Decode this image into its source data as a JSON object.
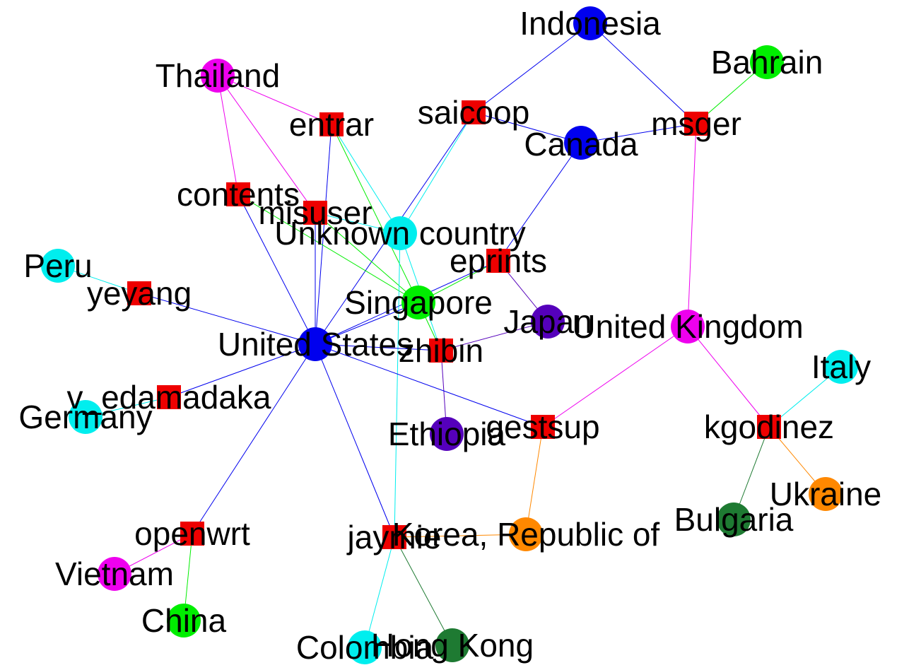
{
  "graph": {
    "countries": [
      {
        "id": "indonesia",
        "label": "Indonesia",
        "color": "#0000ee"
      },
      {
        "id": "bahrain",
        "label": "Bahrain",
        "color": "#00ee00"
      },
      {
        "id": "thailand",
        "label": "Thailand",
        "color": "#ee00ee"
      },
      {
        "id": "canada",
        "label": "Canada",
        "color": "#0000ee"
      },
      {
        "id": "unknown",
        "label": "Unknown country",
        "color": "#00eeee"
      },
      {
        "id": "peru",
        "label": "Peru",
        "color": "#00eeee"
      },
      {
        "id": "singapore",
        "label": "Singapore",
        "color": "#00ee00"
      },
      {
        "id": "japan",
        "label": "Japan",
        "color": "#5500bb"
      },
      {
        "id": "uk",
        "label": "United Kingdom",
        "color": "#ee00ee"
      },
      {
        "id": "us",
        "label": "United States",
        "color": "#0000ee"
      },
      {
        "id": "italy",
        "label": "Italy",
        "color": "#00eeee"
      },
      {
        "id": "germany",
        "label": "Germany",
        "color": "#00eeee"
      },
      {
        "id": "ethiopia",
        "label": "Ethiopia",
        "color": "#5500bb"
      },
      {
        "id": "ukraine",
        "label": "Ukraine",
        "color": "#ff8800"
      },
      {
        "id": "bulgaria",
        "label": "Bulgaria",
        "color": "#1e7a32"
      },
      {
        "id": "korea",
        "label": "Korea, Republic of",
        "color": "#ff8800"
      },
      {
        "id": "vietnam",
        "label": "Vietnam",
        "color": "#ee00ee"
      },
      {
        "id": "china",
        "label": "China",
        "color": "#00ee00"
      },
      {
        "id": "colombia",
        "label": "Colombia",
        "color": "#00eeee"
      },
      {
        "id": "hongkong",
        "label": "Hong Kong",
        "color": "#1e7a32"
      }
    ],
    "users": [
      {
        "id": "saicoop",
        "label": "saicoop"
      },
      {
        "id": "msger",
        "label": "msger"
      },
      {
        "id": "entrar",
        "label": "entrar"
      },
      {
        "id": "contents",
        "label": "contents"
      },
      {
        "id": "misuser",
        "label": "misuser"
      },
      {
        "id": "eprints",
        "label": "eprints"
      },
      {
        "id": "yeyang",
        "label": "yeyang"
      },
      {
        "id": "zhibin",
        "label": "zhibin"
      },
      {
        "id": "vedamadaka",
        "label": "v_edamadaka"
      },
      {
        "id": "gestsup",
        "label": "gestsup"
      },
      {
        "id": "kgodinez",
        "label": "kgodinez"
      },
      {
        "id": "openwrt",
        "label": "openwrt"
      },
      {
        "id": "jaymie",
        "label": "jaymie"
      }
    ],
    "user_color": "#ee0000",
    "edges": [
      {
        "a": "indonesia",
        "b": "saicoop",
        "color": "#0000ee"
      },
      {
        "a": "indonesia",
        "b": "msger",
        "color": "#0000ee"
      },
      {
        "a": "bahrain",
        "b": "msger",
        "color": "#00ee00"
      },
      {
        "a": "saicoop",
        "b": "canada",
        "color": "#0000ee"
      },
      {
        "a": "saicoop",
        "b": "unknown",
        "color": "#00eeee"
      },
      {
        "a": "saicoop",
        "b": "us",
        "color": "#0000ee"
      },
      {
        "a": "canada",
        "b": "msger",
        "color": "#0000ee"
      },
      {
        "a": "msger",
        "b": "uk",
        "color": "#ee00ee"
      },
      {
        "a": "thailand",
        "b": "entrar",
        "color": "#ee00ee"
      },
      {
        "a": "thailand",
        "b": "contents",
        "color": "#ee00ee"
      },
      {
        "a": "thailand",
        "b": "misuser",
        "color": "#ee00ee"
      },
      {
        "a": "entrar",
        "b": "us",
        "color": "#0000ee"
      },
      {
        "a": "entrar",
        "b": "unknown",
        "color": "#00eeee"
      },
      {
        "a": "entrar",
        "b": "singapore",
        "color": "#00ee00"
      },
      {
        "a": "contents",
        "b": "us",
        "color": "#0000ee"
      },
      {
        "a": "contents",
        "b": "singapore",
        "color": "#00ee00"
      },
      {
        "a": "misuser",
        "b": "us",
        "color": "#0000ee"
      },
      {
        "a": "misuser",
        "b": "unknown",
        "color": "#00eeee"
      },
      {
        "a": "misuser",
        "b": "singapore",
        "color": "#00ee00"
      },
      {
        "a": "canada",
        "b": "eprints",
        "color": "#0000ee"
      },
      {
        "a": "eprints",
        "b": "singapore",
        "color": "#00ee00"
      },
      {
        "a": "eprints",
        "b": "japan",
        "color": "#5500bb"
      },
      {
        "a": "eprints",
        "b": "us",
        "color": "#0000ee"
      },
      {
        "a": "peru",
        "b": "yeyang",
        "color": "#00eeee"
      },
      {
        "a": "yeyang",
        "b": "us",
        "color": "#0000ee"
      },
      {
        "a": "unknown",
        "b": "zhibin",
        "color": "#00eeee"
      },
      {
        "a": "unknown",
        "b": "jaymie",
        "color": "#00eeee"
      },
      {
        "a": "singapore",
        "b": "zhibin",
        "color": "#00ee00"
      },
      {
        "a": "singapore",
        "b": "us",
        "color": "#0000ee"
      },
      {
        "a": "us",
        "b": "zhibin",
        "color": "#0000ee"
      },
      {
        "a": "japan",
        "b": "zhibin",
        "color": "#5500bb"
      },
      {
        "a": "zhibin",
        "b": "ethiopia",
        "color": "#5500bb"
      },
      {
        "a": "us",
        "b": "vedamadaka",
        "color": "#0000ee"
      },
      {
        "a": "germany",
        "b": "vedamadaka",
        "color": "#00eeee"
      },
      {
        "a": "us",
        "b": "gestsup",
        "color": "#0000ee"
      },
      {
        "a": "uk",
        "b": "gestsup",
        "color": "#ee00ee"
      },
      {
        "a": "gestsup",
        "b": "korea",
        "color": "#ff8800"
      },
      {
        "a": "uk",
        "b": "kgodinez",
        "color": "#ee00ee"
      },
      {
        "a": "italy",
        "b": "kgodinez",
        "color": "#00eeee"
      },
      {
        "a": "kgodinez",
        "b": "ukraine",
        "color": "#ff8800"
      },
      {
        "a": "kgodinez",
        "b": "bulgaria",
        "color": "#1e7a32"
      },
      {
        "a": "us",
        "b": "openwrt",
        "color": "#0000ee"
      },
      {
        "a": "openwrt",
        "b": "vietnam",
        "color": "#ee00ee"
      },
      {
        "a": "openwrt",
        "b": "china",
        "color": "#00ee00"
      },
      {
        "a": "us",
        "b": "jaymie",
        "color": "#0000ee"
      },
      {
        "a": "jaymie",
        "b": "korea",
        "color": "#ff8800"
      },
      {
        "a": "jaymie",
        "b": "colombia",
        "color": "#00eeee"
      },
      {
        "a": "jaymie",
        "b": "hongkong",
        "color": "#1e7a32"
      }
    ]
  }
}
